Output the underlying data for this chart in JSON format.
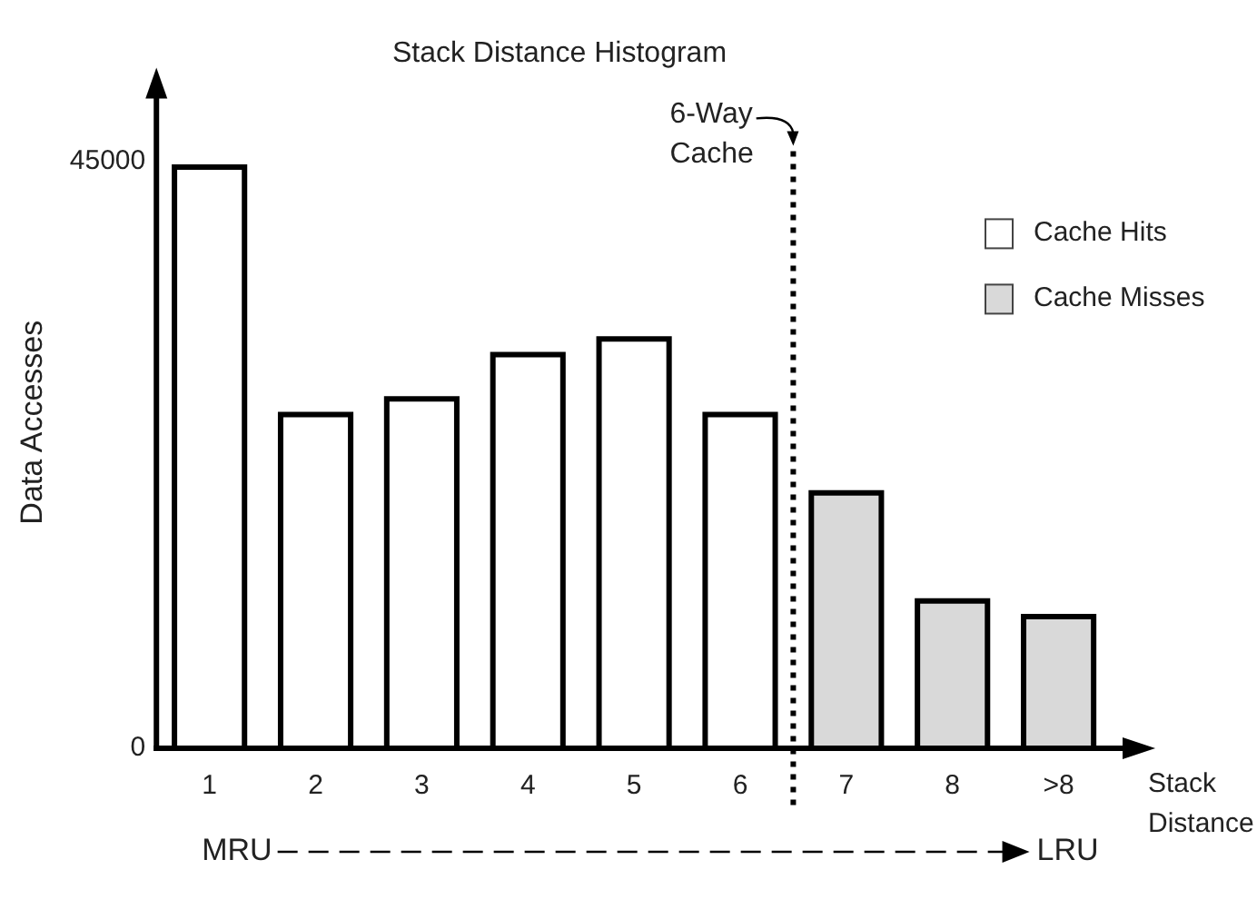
{
  "chart_data": {
    "type": "bar",
    "title": "Stack Distance Histogram",
    "xlabel": "Stack Distance",
    "ylabel": "Data Accesses",
    "categories": [
      "1",
      "2",
      "3",
      "4",
      "5",
      "6",
      "7",
      "8",
      ">8"
    ],
    "series": [
      {
        "name": "Cache Hits",
        "color": "#ffffff",
        "values": [
          44600,
          25600,
          26800,
          30200,
          31400,
          25600,
          null,
          null,
          null
        ]
      },
      {
        "name": "Cache Misses",
        "color": "#d9d9d9",
        "values": [
          null,
          null,
          null,
          null,
          null,
          null,
          19600,
          11300,
          10100
        ]
      }
    ],
    "ylim": [
      0,
      50000
    ],
    "yticks": [
      0,
      45000
    ],
    "grid": false,
    "legend": "right",
    "annotations": [
      "6-Way Cache",
      "MRU",
      "LRU"
    ]
  }
}
